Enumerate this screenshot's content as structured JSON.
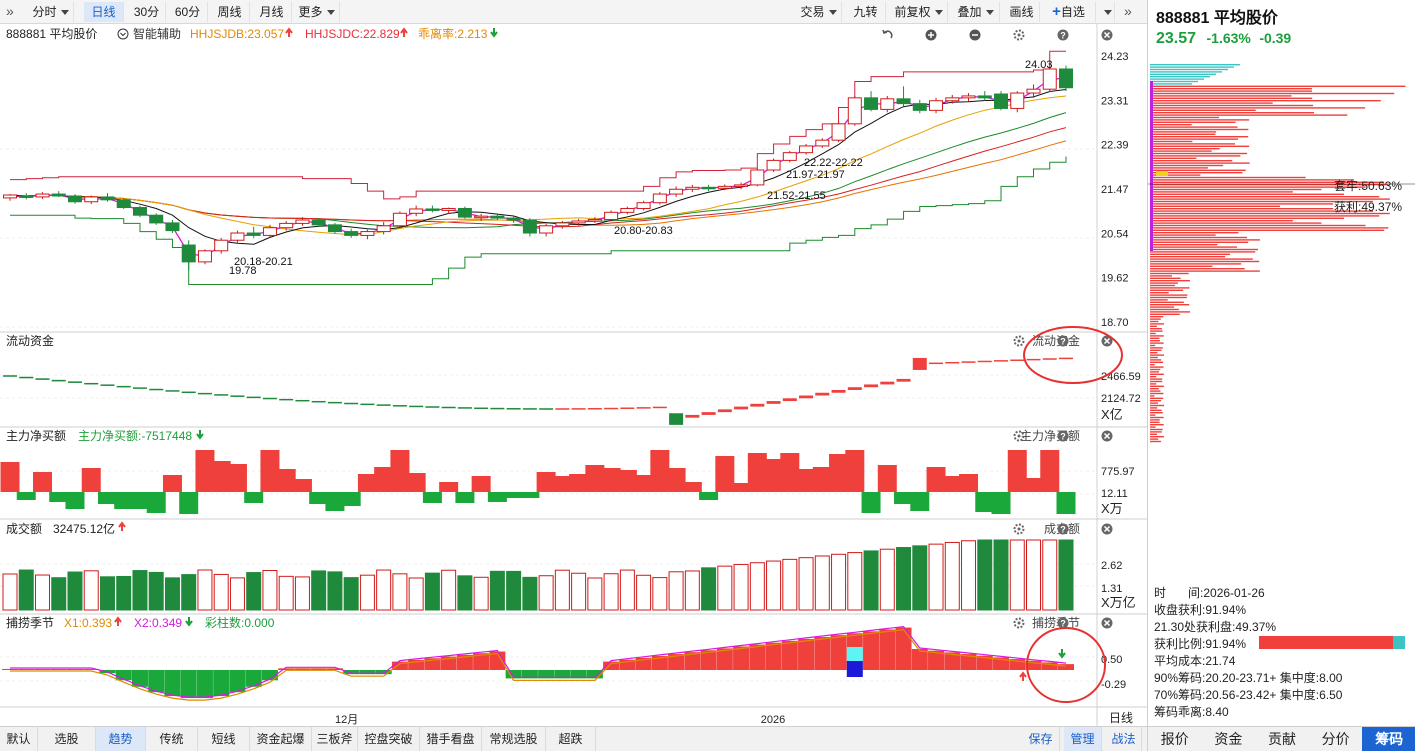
{
  "toolbar": {
    "left_buttons": [
      {
        "label": "分时",
        "dropdown": true
      },
      {
        "label": "日线",
        "active": true
      },
      {
        "label": "30分"
      },
      {
        "label": "60分"
      },
      {
        "label": "周线"
      },
      {
        "label": "月线"
      },
      {
        "label": "更多",
        "dropdown": true
      }
    ],
    "right_buttons": [
      {
        "label": "交易",
        "dropdown": true
      },
      {
        "label": "九转"
      },
      {
        "label": "前复权",
        "dropdown": true
      },
      {
        "label": "叠加",
        "dropdown": true
      },
      {
        "label": "画线"
      },
      {
        "label": "自选",
        "plus": true
      },
      {
        "label": "",
        "dropdown": true
      }
    ]
  },
  "main_chart": {
    "title": "888881 平均股价",
    "assist": "智能辅助",
    "ind1": "HHJSJDB:23.057",
    "ind2": "HHJSJDC:22.829",
    "ind3": "乖离率:2.213",
    "y_ticks": [
      "24.23",
      "23.31",
      "22.39",
      "21.47",
      "20.54",
      "19.62",
      "18.70"
    ],
    "annotations": [
      "24.03",
      "22.22-22.22",
      "21.97-21.97",
      "21.52-21.55",
      "20.80-20.83",
      "20.18-20.21",
      "19.78"
    ]
  },
  "panel_liquidity": {
    "title": "流动资金",
    "right_title": "流动资金",
    "y_ticks": [
      "2466.59",
      "2124.72"
    ],
    "unit": "X亿"
  },
  "panel_main_net": {
    "title": "主力净买额",
    "value": "主力净买额:-7517448",
    "right_title": "主力净买额",
    "y_ticks": [
      "775.97",
      "12.11"
    ],
    "unit": "X万"
  },
  "panel_turnover": {
    "title": "成交额",
    "value": "32475.12亿",
    "right_title": "成交额",
    "y_ticks": [
      "2.62",
      "1.31"
    ],
    "unit": "X万亿"
  },
  "panel_season": {
    "title": "捕捞季节",
    "x1": "X1:0.393",
    "x2": "X2:0.349",
    "bars": "彩柱数:0.000",
    "right_title": "捕捞季节",
    "y_ticks": [
      "0.50",
      "-0.29"
    ]
  },
  "x_axis": {
    "labels": [
      "12月",
      "2026"
    ],
    "period": "日线"
  },
  "chart_data": {
    "type": "candlestick",
    "title": "888881 平均股价",
    "ylim": [
      18.7,
      24.23
    ],
    "x_labels": [
      "12月",
      "2026"
    ],
    "ohlc": [
      [
        21.28,
        21.36,
        21.22,
        21.34
      ],
      [
        21.32,
        21.38,
        21.25,
        21.3
      ],
      [
        21.3,
        21.4,
        21.26,
        21.36
      ],
      [
        21.36,
        21.42,
        21.3,
        21.32
      ],
      [
        21.32,
        21.36,
        21.16,
        21.2
      ],
      [
        21.2,
        21.33,
        21.15,
        21.3
      ],
      [
        21.3,
        21.38,
        21.2,
        21.24
      ],
      [
        21.24,
        21.28,
        21.05,
        21.08
      ],
      [
        21.08,
        21.12,
        20.88,
        20.92
      ],
      [
        20.92,
        20.96,
        20.72,
        20.76
      ],
      [
        20.76,
        20.82,
        20.55,
        20.6
      ],
      [
        20.3,
        20.4,
        19.78,
        19.95
      ],
      [
        19.95,
        20.21,
        19.9,
        20.18
      ],
      [
        20.18,
        20.45,
        20.12,
        20.4
      ],
      [
        20.4,
        20.6,
        20.35,
        20.55
      ],
      [
        20.55,
        20.68,
        20.45,
        20.5
      ],
      [
        20.5,
        20.72,
        20.46,
        20.66
      ],
      [
        20.66,
        20.8,
        20.6,
        20.75
      ],
      [
        20.75,
        20.88,
        20.7,
        20.82
      ],
      [
        20.82,
        20.86,
        20.68,
        20.72
      ],
      [
        20.72,
        20.76,
        20.54,
        20.58
      ],
      [
        20.58,
        20.64,
        20.45,
        20.5
      ],
      [
        20.5,
        20.62,
        20.42,
        20.58
      ],
      [
        20.58,
        20.78,
        20.52,
        20.7
      ],
      [
        20.7,
        21.0,
        20.66,
        20.96
      ],
      [
        20.96,
        21.12,
        20.9,
        21.05
      ],
      [
        21.05,
        21.12,
        20.98,
        21.02
      ],
      [
        21.02,
        21.08,
        20.95,
        21.06
      ],
      [
        21.06,
        21.1,
        20.85,
        20.88
      ],
      [
        20.88,
        20.95,
        20.8,
        20.9
      ],
      [
        20.9,
        20.96,
        20.82,
        20.86
      ],
      [
        20.86,
        20.92,
        20.76,
        20.82
      ],
      [
        20.82,
        20.86,
        20.48,
        20.55
      ],
      [
        20.55,
        20.74,
        20.48,
        20.7
      ],
      [
        20.7,
        20.8,
        20.64,
        20.76
      ],
      [
        20.76,
        20.84,
        20.7,
        20.8
      ],
      [
        20.8,
        20.88,
        20.76,
        20.83
      ],
      [
        20.83,
        21.02,
        20.8,
        20.98
      ],
      [
        20.98,
        21.1,
        20.94,
        21.06
      ],
      [
        21.06,
        21.22,
        21.02,
        21.18
      ],
      [
        21.18,
        21.4,
        21.14,
        21.36
      ],
      [
        21.36,
        21.52,
        21.3,
        21.46
      ],
      [
        21.46,
        21.55,
        21.4,
        21.5
      ],
      [
        21.5,
        21.55,
        21.42,
        21.48
      ],
      [
        21.48,
        21.56,
        21.44,
        21.52
      ],
      [
        21.52,
        21.6,
        21.46,
        21.55
      ],
      [
        21.55,
        21.9,
        21.52,
        21.86
      ],
      [
        21.86,
        22.1,
        21.82,
        22.06
      ],
      [
        22.06,
        22.26,
        22.02,
        22.22
      ],
      [
        22.22,
        22.4,
        22.18,
        22.36
      ],
      [
        22.36,
        22.52,
        22.32,
        22.48
      ],
      [
        22.48,
        22.86,
        22.44,
        22.82
      ],
      [
        22.82,
        23.4,
        22.78,
        23.36
      ],
      [
        23.36,
        23.5,
        23.08,
        23.12
      ],
      [
        23.12,
        23.4,
        23.06,
        23.34
      ],
      [
        23.34,
        23.6,
        23.18,
        23.24
      ],
      [
        23.24,
        23.32,
        23.04,
        23.1
      ],
      [
        23.1,
        23.36,
        23.04,
        23.3
      ],
      [
        23.3,
        23.42,
        23.24,
        23.36
      ],
      [
        23.36,
        23.46,
        23.28,
        23.4
      ],
      [
        23.4,
        23.5,
        23.3,
        23.36
      ],
      [
        23.44,
        23.5,
        23.1,
        23.14
      ],
      [
        23.14,
        23.5,
        23.06,
        23.46
      ],
      [
        23.46,
        23.64,
        23.36,
        23.54
      ],
      [
        23.54,
        24.03,
        23.48,
        23.96
      ],
      [
        23.96,
        24.03,
        23.5,
        23.57
      ]
    ],
    "series": [
      {
        "name": "HHJSJDB",
        "value": 23.057
      },
      {
        "name": "HHJSJDC",
        "value": 22.829
      }
    ]
  },
  "right_panel": {
    "title": "888881 平均股价",
    "price": "23.57",
    "change_pct": "-1.63%",
    "change": "-0.39",
    "trapped": "套牢:50.63%",
    "profit": "获利:49.37%",
    "time_label": "时",
    "time_value": "间:2026-01-26",
    "close_profit": "收盘获利:91.94%",
    "price_profit": "21.30处获利盘:49.37%",
    "profit_ratio": "获利比例:91.94%",
    "profit_ratio_value": 0.9194,
    "avg_cost": "平均成本:21.74",
    "chip90": "90%筹码:20.20-23.71+ 集中度:8.00",
    "chip70": "70%筹码:20.56-23.42+ 集中度:6.50",
    "chip_dev": "筹码乖离:8.40",
    "tabs": [
      "报价",
      "资金",
      "贡献",
      "分价",
      "筹码"
    ],
    "active_tab": "筹码"
  },
  "bottom_tabs": [
    "默认",
    "选股",
    "趋势",
    "传统",
    "短线",
    "资金起爆",
    "三板斧",
    "控盘突破",
    "猎手看盘",
    "常规选股",
    "超跌"
  ],
  "active_bottom_tab": "趋势",
  "bottom_right": [
    "保存",
    "管理",
    "战法"
  ],
  "colors": {
    "up": "#f0403c",
    "down": "#1f8a3c",
    "accent": "#1b64d1"
  }
}
